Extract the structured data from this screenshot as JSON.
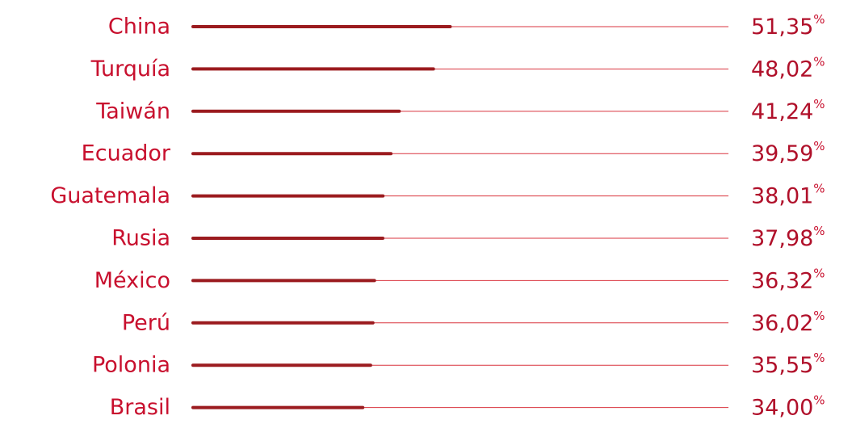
{
  "chart_data": {
    "type": "bar",
    "orientation": "horizontal",
    "categories": [
      "China",
      "Turquía",
      "Taiwán",
      "Ecuador",
      "Guatemala",
      "Rusia",
      "México",
      "Perú",
      "Polonia",
      "Brasil"
    ],
    "values": [
      51.35,
      48.02,
      41.24,
      39.59,
      38.01,
      37.98,
      36.32,
      36.02,
      35.55,
      34.0
    ],
    "value_labels": [
      "51,35",
      "48,02",
      "41,24",
      "39,59",
      "38,01",
      "37,98",
      "36,32",
      "36,02",
      "35,55",
      "34,00"
    ],
    "unit": "%",
    "grid": false,
    "colors": {
      "label": "#c8102e",
      "value": "#b0102a",
      "bar": "#9b1b1f",
      "track": "#d9343f"
    }
  }
}
